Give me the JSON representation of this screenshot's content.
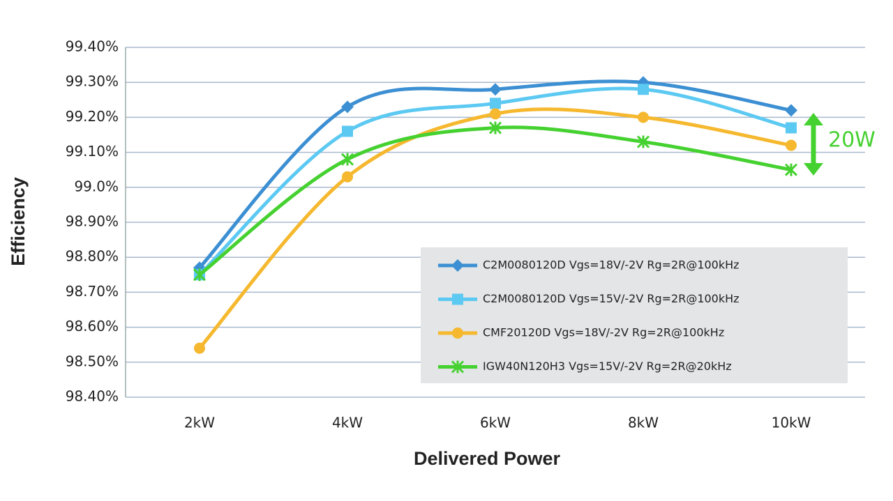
{
  "chart_data": {
    "type": "line",
    "x_label": "Delivered Power",
    "y_label": "Efficiency",
    "categories": [
      "2kW",
      "4kW",
      "6kW",
      "8kW",
      "10kW"
    ],
    "series": [
      {
        "name": "C2M0080120D Vgs=18V/-2V Rg=2R@100kHz",
        "color": "#3b8fd2",
        "marker": "diamond",
        "values": [
          98.77,
          99.23,
          99.28,
          99.3,
          99.22
        ]
      },
      {
        "name": "C2M0080120D Vgs=15V/-2V Rg=2R@100kHz",
        "color": "#5cc9f2",
        "marker": "square",
        "values": [
          98.75,
          99.16,
          99.24,
          99.28,
          99.17
        ]
      },
      {
        "name": "CMF20120D Vgs=18V/-2V Rg=2R@100kHz",
        "color": "#f5b82e",
        "marker": "circle",
        "values": [
          98.54,
          99.03,
          99.21,
          99.2,
          99.12
        ]
      },
      {
        "name": "IGW40N120H3 Vgs=15V/-2V Rg=2R@20kHz",
        "color": "#45d130",
        "marker": "asterisk",
        "values": [
          98.75,
          99.08,
          99.17,
          99.13,
          99.05
        ]
      }
    ],
    "ylim": [
      98.4,
      99.4
    ],
    "yticks": [
      {
        "value": 98.4,
        "label": "98.40%"
      },
      {
        "value": 98.5,
        "label": "98.50%"
      },
      {
        "value": 98.6,
        "label": "98.60%"
      },
      {
        "value": 98.7,
        "label": "98.70%"
      },
      {
        "value": 98.8,
        "label": "98.80%"
      },
      {
        "value": 98.9,
        "label": "98.90%"
      },
      {
        "value": 99.0,
        "label": "99.0%"
      },
      {
        "value": 99.1,
        "label": "99.10%"
      },
      {
        "value": 99.2,
        "label": "99.20%"
      },
      {
        "value": 99.3,
        "label": "99.30%"
      },
      {
        "value": 99.4,
        "label": "99.40%"
      }
    ],
    "grid": true,
    "legend": "lower right",
    "annotation": "20W"
  }
}
